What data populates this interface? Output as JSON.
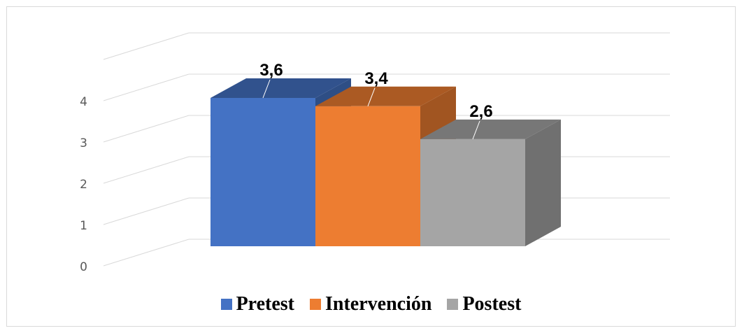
{
  "chart_data": {
    "type": "bar",
    "categories": [
      "Pretest",
      "Intervención",
      "Postest"
    ],
    "values": [
      3.6,
      3.4,
      2.6
    ],
    "data_labels": [
      "3,6",
      "3,4",
      "2,6"
    ],
    "yticks": [
      "0",
      "1",
      "2",
      "3",
      "4"
    ],
    "ylim": [
      0,
      4
    ],
    "grid": true,
    "legend_position": "bottom",
    "three_d": true,
    "colors": {
      "Pretest": "#4472c4",
      "Intervención": "#ed7d31",
      "Postest": "#a5a5a5"
    }
  },
  "legend": {
    "items": [
      {
        "label": "Pretest",
        "color": "#4472c4"
      },
      {
        "label": "Intervención",
        "color": "#ed7d31"
      },
      {
        "label": "Postest",
        "color": "#a5a5a5"
      }
    ]
  }
}
